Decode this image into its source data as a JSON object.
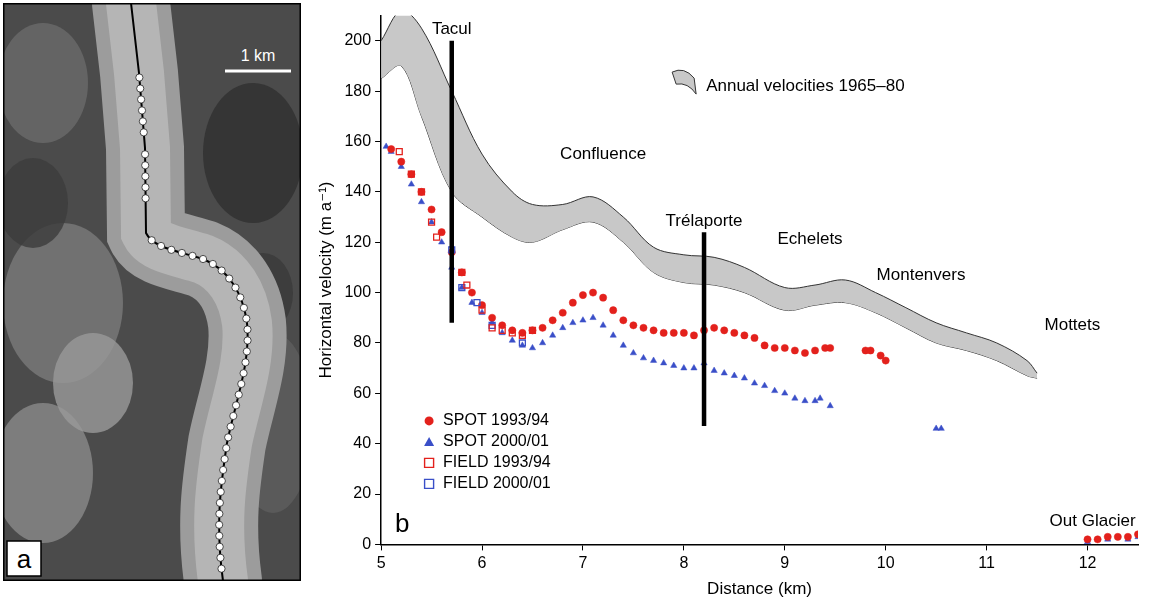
{
  "image_panel": {
    "label": "a",
    "scale_bar": "1 km"
  },
  "chart_data": {
    "type": "scatter",
    "panel_label": "b",
    "x_label": "Distance (km)",
    "y_label": "Horizontal velocity (m a⁻¹)",
    "xlim": [
      5,
      12.5
    ],
    "xticks": [
      5,
      6,
      7,
      8,
      9,
      10,
      11,
      12
    ],
    "ylim": [
      0,
      210
    ],
    "yticks": [
      0,
      20,
      40,
      60,
      80,
      100,
      120,
      140,
      160,
      180,
      200
    ],
    "grid": false,
    "legend": "lower left",
    "series": [
      {
        "name": "Annual velocities 1965–80",
        "type": "band",
        "color": "#c8c8c8",
        "x": [
          5.0,
          5.2,
          5.4,
          5.7,
          6.0,
          6.3,
          6.5,
          6.8,
          7.1,
          7.4,
          7.7,
          8.0,
          8.3,
          8.6,
          9.0,
          9.3,
          9.6,
          9.9,
          10.2,
          10.5,
          10.8,
          11.1,
          11.4,
          11.5
        ],
        "upper": [
          200,
          212,
          205,
          180,
          155,
          140,
          135,
          135,
          138,
          130,
          118,
          115,
          114,
          110,
          102,
          103,
          105,
          100,
          94,
          88,
          84,
          80,
          73,
          68
        ],
        "lower": [
          185,
          190,
          170,
          140,
          130,
          122,
          120,
          125,
          128,
          120,
          108,
          104,
          103,
          100,
          93,
          95,
          96,
          92,
          86,
          80,
          77,
          73,
          67,
          66
        ]
      },
      {
        "name": "SPOT 1993/94",
        "type": "scatter",
        "color": "#e3211c",
        "marker": "circle",
        "x": [
          5.1,
          5.2,
          5.3,
          5.4,
          5.5,
          5.6,
          5.7,
          5.8,
          5.9,
          6.0,
          6.1,
          6.2,
          6.3,
          6.4,
          6.5,
          6.6,
          6.7,
          6.8,
          6.9,
          7.0,
          7.1,
          7.2,
          7.3,
          7.4,
          7.5,
          7.6,
          7.7,
          7.8,
          7.9,
          8.0,
          8.1,
          8.2,
          8.3,
          8.4,
          8.5,
          8.6,
          8.7,
          8.8,
          8.9,
          9.0,
          9.1,
          9.2,
          9.3,
          9.4,
          9.45,
          9.8,
          9.85,
          9.95,
          10.0,
          12.0,
          12.1,
          12.2,
          12.3,
          12.4,
          12.5
        ],
        "values": [
          157,
          152,
          147,
          140,
          133,
          124,
          116,
          108,
          100,
          95,
          90,
          87,
          85,
          84,
          85,
          86,
          89,
          92,
          96,
          99,
          100,
          98,
          93,
          89,
          87,
          86,
          85,
          84,
          84,
          84,
          83,
          85,
          86,
          85,
          84,
          83,
          82,
          79,
          78,
          78,
          77,
          76,
          77,
          78,
          78,
          77,
          77,
          75,
          73,
          2,
          2,
          3,
          3,
          3,
          4
        ]
      },
      {
        "name": "SPOT 2000/01",
        "type": "scatter",
        "color": "#3a4fc8",
        "marker": "triangle",
        "x": [
          5.05,
          5.1,
          5.2,
          5.3,
          5.4,
          5.5,
          5.6,
          5.7,
          5.8,
          5.9,
          6.0,
          6.1,
          6.2,
          6.3,
          6.4,
          6.5,
          6.6,
          6.7,
          6.8,
          6.9,
          7.0,
          7.1,
          7.2,
          7.3,
          7.4,
          7.5,
          7.6,
          7.7,
          7.8,
          7.9,
          8.0,
          8.1,
          8.2,
          8.3,
          8.4,
          8.5,
          8.6,
          8.7,
          8.8,
          8.9,
          9.0,
          9.1,
          9.2,
          9.3,
          9.35,
          9.45,
          10.5,
          10.55,
          12.0,
          12.2,
          12.4,
          12.5
        ],
        "values": [
          158,
          156,
          150,
          143,
          136,
          128,
          120,
          110,
          102,
          96,
          92,
          88,
          84,
          81,
          79,
          78,
          80,
          83,
          86,
          88,
          89,
          90,
          87,
          83,
          79,
          76,
          74,
          73,
          72,
          71,
          70,
          70,
          72,
          69,
          68,
          67,
          66,
          64,
          63,
          61,
          60,
          58,
          57,
          57,
          58,
          55,
          46,
          46,
          1,
          2,
          2,
          3
        ]
      },
      {
        "name": "FIELD 1993/94",
        "type": "scatter",
        "color": "#e3211c",
        "marker": "open_square",
        "x": [
          5.18,
          5.3,
          5.4,
          5.5,
          5.55,
          5.8,
          5.85,
          6.0,
          6.1,
          6.2,
          6.3,
          6.4,
          6.5
        ],
        "values": [
          156,
          147,
          140,
          128,
          122,
          108,
          103,
          93,
          86,
          85,
          84,
          83,
          85
        ]
      },
      {
        "name": "FIELD 2000/01",
        "type": "scatter",
        "color": "#3a4fc8",
        "marker": "open_square",
        "x": [
          5.7,
          5.8,
          5.95,
          6.1,
          6.4
        ],
        "values": [
          117,
          102,
          96,
          87,
          80
        ]
      }
    ],
    "reference_lines": [
      {
        "label": "Tacul",
        "x": 5.7,
        "ymin": 88,
        "ymax": 200
      },
      {
        "label": "Trélaporte",
        "x": 8.2,
        "ymin": 47,
        "ymax": 124
      }
    ],
    "annotations": [
      {
        "text": "Confluence",
        "x": 7.2,
        "y": 155
      },
      {
        "text": "Echelets",
        "x": 9.25,
        "y": 121
      },
      {
        "text": "Montenvers",
        "x": 10.35,
        "y": 107
      },
      {
        "text": "Mottets",
        "x": 11.85,
        "y": 87
      },
      {
        "text": "Out Glacier",
        "x": 12.05,
        "y": 9
      }
    ]
  }
}
